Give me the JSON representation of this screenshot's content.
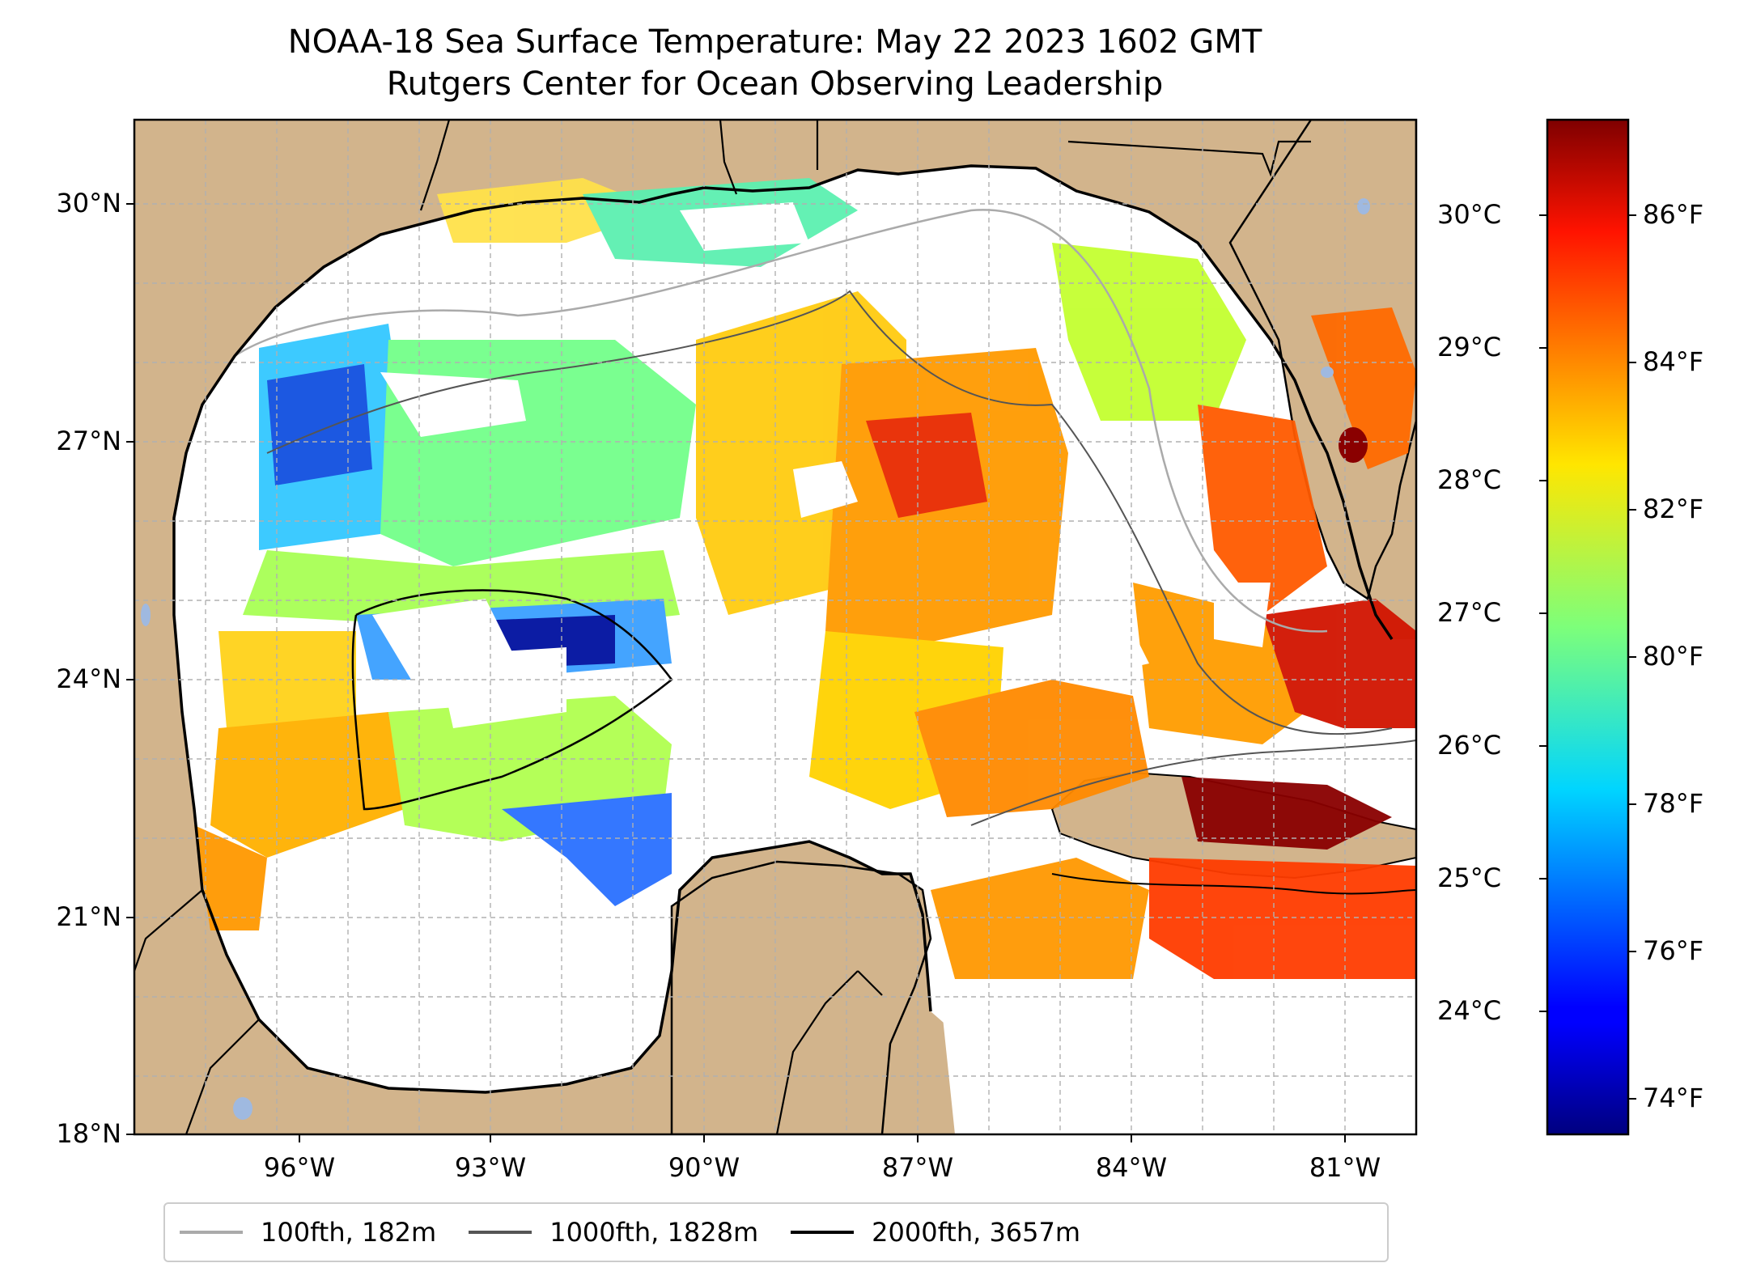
{
  "title": {
    "line1": "NOAA-18 Sea Surface Temperature: May 22 2023 1602 GMT",
    "line2": "Rutgers Center for Ocean Observing Leadership"
  },
  "map": {
    "lat_range": [
      18,
      31
    ],
    "lon_range": [
      -98,
      -80
    ],
    "lat_ticks": [
      "30°N",
      "27°N",
      "24°N",
      "21°N",
      "18°N"
    ],
    "lon_ticks": [
      "96°W",
      "93°W",
      "90°W",
      "87°W",
      "84°W",
      "81°W"
    ],
    "land_color": "#d2b48c",
    "ocean_nodata_color": "#ffffff",
    "lake_color": "#9fb9e0",
    "gridlines": true
  },
  "colorbar": {
    "colormap": "jet",
    "celsius_ticks": [
      "30°C",
      "29°C",
      "28°C",
      "27°C",
      "26°C",
      "25°C",
      "24°C"
    ],
    "fahrenheit_ticks": [
      "86°F",
      "84°F",
      "82°F",
      "80°F",
      "78°F",
      "76°F",
      "74°F"
    ]
  },
  "legend": [
    {
      "label": "100fth, 182m",
      "color": "#aaaaaa"
    },
    {
      "label": "1000fth, 1828m",
      "color": "#555555"
    },
    {
      "label": "2000fth, 3657m",
      "color": "#000000"
    }
  ]
}
